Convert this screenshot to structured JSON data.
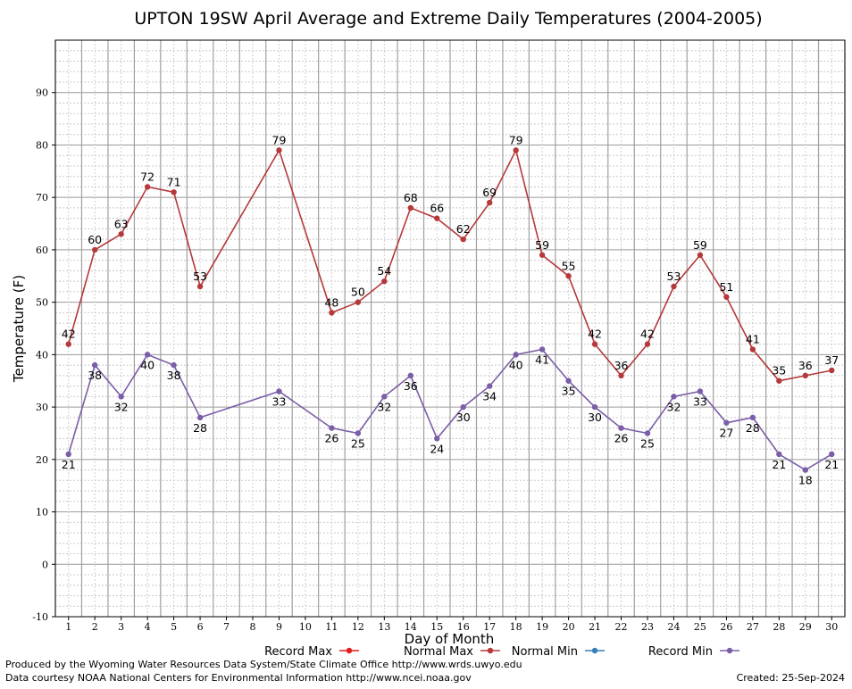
{
  "chart_data": {
    "type": "line",
    "title": "UPTON 19SW April Average and Extreme Daily Temperatures (2004-2005)",
    "xlabel": "Day of Month",
    "ylabel": "Temperature (F)",
    "xlim": [
      0.5,
      30.5
    ],
    "ylim": [
      -10,
      100
    ],
    "yticks": [
      -10,
      0,
      10,
      20,
      30,
      40,
      50,
      60,
      70,
      80,
      90
    ],
    "xticks": [
      1,
      2,
      3,
      4,
      5,
      6,
      7,
      8,
      9,
      10,
      11,
      12,
      13,
      14,
      15,
      16,
      17,
      18,
      19,
      20,
      21,
      22,
      23,
      24,
      25,
      26,
      27,
      28,
      29,
      30
    ],
    "grid": true,
    "legend_position": "bottom",
    "series": [
      {
        "name": "Record Max",
        "color": "#e41a1c",
        "points": []
      },
      {
        "name": "Normal Max",
        "color": "#b5383a",
        "points": [
          [
            1,
            42
          ],
          [
            2,
            60
          ],
          [
            3,
            63
          ],
          [
            4,
            72
          ],
          [
            5,
            71
          ],
          [
            6,
            53
          ],
          [
            9,
            79
          ],
          [
            11,
            48
          ],
          [
            12,
            50
          ],
          [
            13,
            54
          ],
          [
            14,
            68
          ],
          [
            15,
            66
          ],
          [
            16,
            62
          ],
          [
            17,
            69
          ],
          [
            18,
            79
          ],
          [
            19,
            59
          ],
          [
            20,
            55
          ],
          [
            21,
            42
          ],
          [
            22,
            36
          ],
          [
            23,
            42
          ],
          [
            24,
            53
          ],
          [
            25,
            59
          ],
          [
            26,
            51
          ],
          [
            27,
            41
          ],
          [
            28,
            35
          ],
          [
            29,
            36
          ],
          [
            30,
            37
          ]
        ]
      },
      {
        "name": "Normal Min",
        "color": "#377eb8",
        "points": []
      },
      {
        "name": "Record Min",
        "color": "#7b5ea7",
        "points": [
          [
            1,
            21
          ],
          [
            2,
            38
          ],
          [
            3,
            32
          ],
          [
            4,
            40
          ],
          [
            5,
            38
          ],
          [
            6,
            28
          ],
          [
            9,
            33
          ],
          [
            11,
            26
          ],
          [
            12,
            25
          ],
          [
            13,
            32
          ],
          [
            14,
            36
          ],
          [
            15,
            24
          ],
          [
            16,
            30
          ],
          [
            17,
            34
          ],
          [
            18,
            40
          ],
          [
            19,
            41
          ],
          [
            20,
            35
          ],
          [
            21,
            30
          ],
          [
            22,
            26
          ],
          [
            23,
            25
          ],
          [
            24,
            32
          ],
          [
            25,
            33
          ],
          [
            26,
            27
          ],
          [
            27,
            28
          ],
          [
            28,
            21
          ],
          [
            29,
            18
          ],
          [
            30,
            21
          ]
        ]
      }
    ]
  },
  "footer": {
    "left_line1": "Produced by the Wyoming Water Resources Data System/State Climate Office http://www.wrds.uwyo.edu",
    "left_line2": "Data courtesy NOAA National Centers for Environmental Information http://www.ncei.noaa.gov",
    "created": "Created:  25-Sep-2024"
  }
}
